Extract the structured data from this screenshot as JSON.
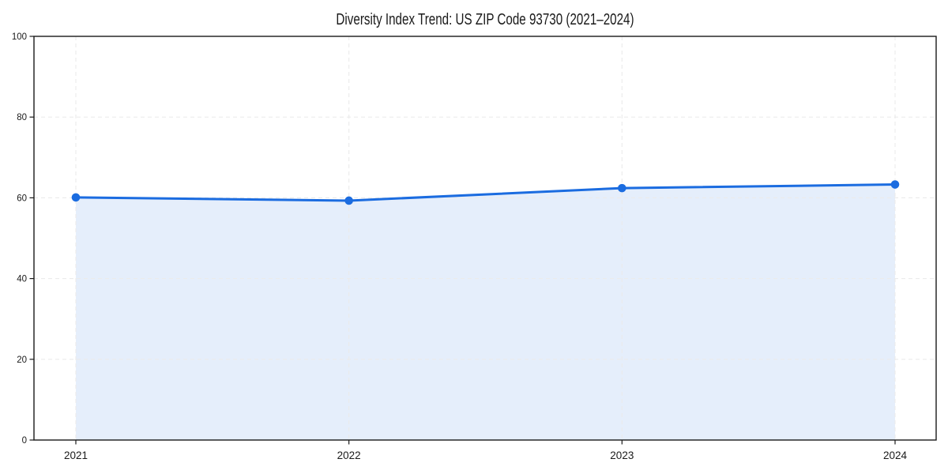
{
  "chart_data": {
    "type": "area",
    "title": "Diversity Index Trend: US ZIP Code 93730 (2021–2024)",
    "categories": [
      "2021",
      "2022",
      "2023",
      "2024"
    ],
    "series": [
      {
        "name": "Diversity Index",
        "values": [
          60.1,
          59.3,
          62.4,
          63.3
        ]
      }
    ],
    "xlabel": "",
    "ylabel": "",
    "ylim": [
      0,
      100
    ],
    "yticks": [
      0,
      20,
      40,
      60,
      80,
      100
    ],
    "grid": "dashed, horizontal at yticks and vertical at each year",
    "legend": "none",
    "marker": "circle",
    "colors": {
      "line": "#1b6ce0",
      "marker": "#1b6ce0",
      "fill": "rgba(27,108,224,0.115)",
      "grid": "#ebebeb",
      "axis": "#1a1a1a",
      "tick_label": "#1a1a1a",
      "title": "#0d0d0d",
      "background": "#ffffff"
    }
  }
}
